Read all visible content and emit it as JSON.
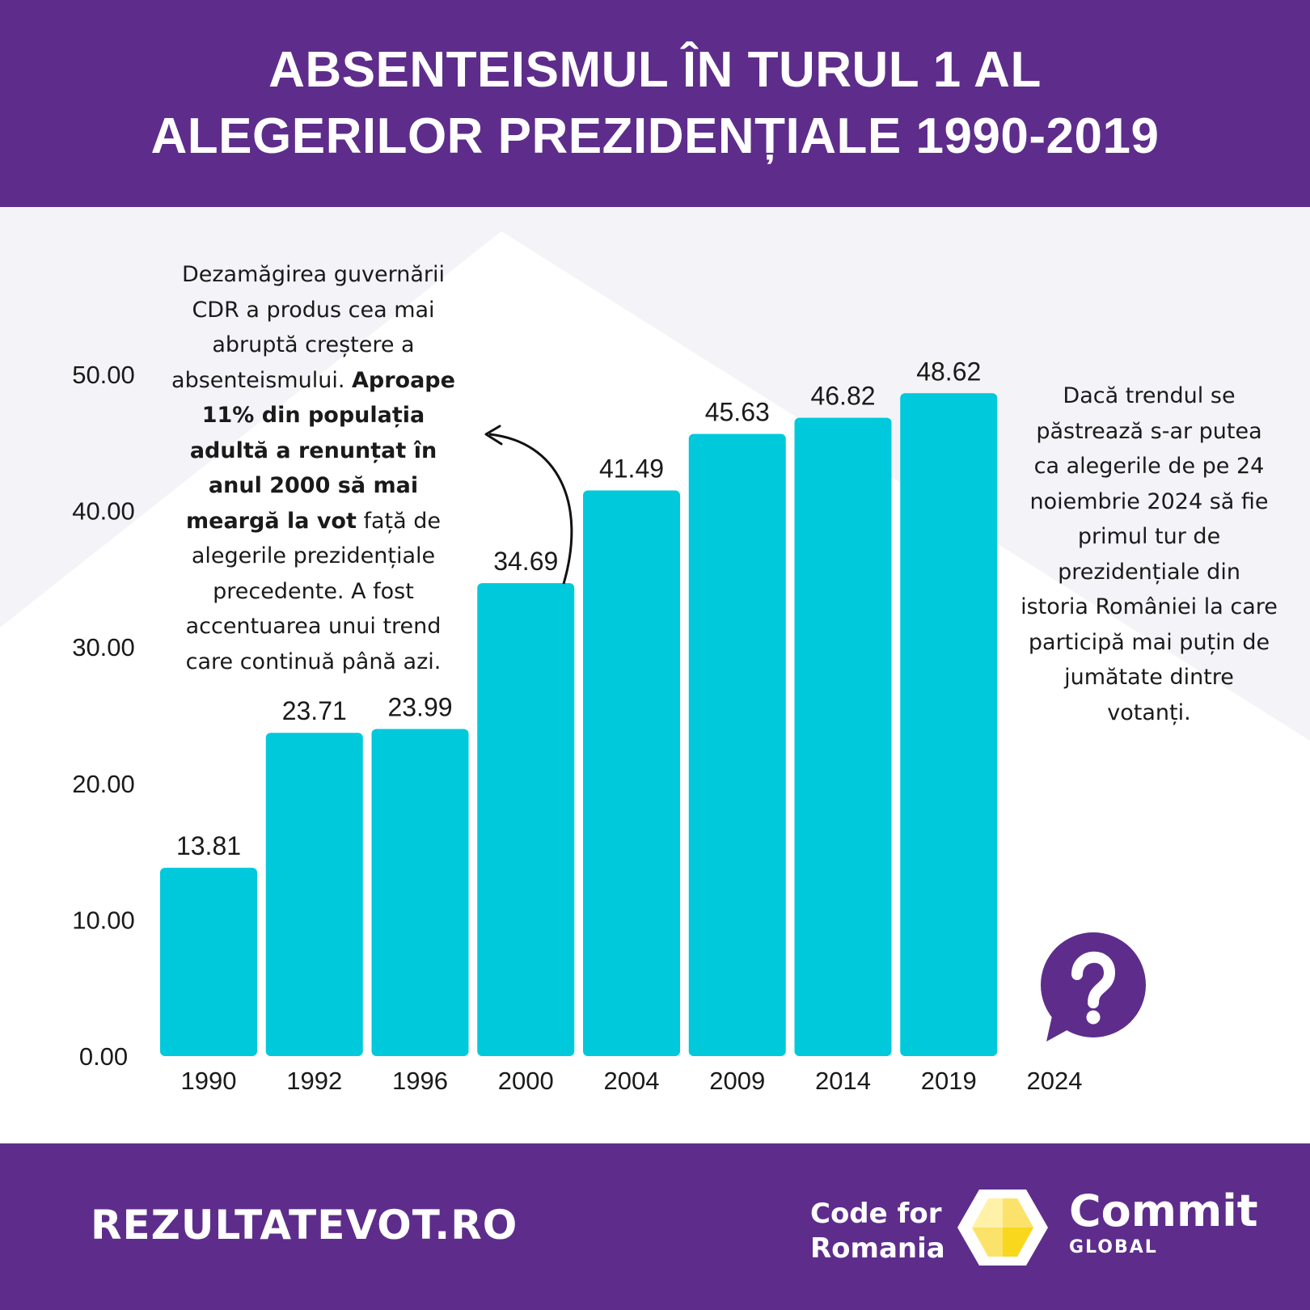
{
  "header": {
    "title_line1": "ABSENTEISMUL ÎN TURUL 1 AL",
    "title_line2": "ALEGERILOR PREZIDENȚIALE 1990-2019"
  },
  "annotations": {
    "left_part1": "Dezamăgirea guvernării CDR a produs cea mai abruptă creștere a absenteismului.",
    "left_bold": "Aproape 11% din populația adultă a renunțat în anul 2000 să mai meargă la vot",
    "left_part2": "față de alegerile prezidențiale precedente. A fost accentuarea unui trend care continuă până azi.",
    "right": "Dacă trendul se păstrează s-ar putea ca alegerile de pe 24 noiembrie 2024 să fie primul tur de prezidențiale din istoria României la care participă mai puțin de jumătate dintre votanți."
  },
  "footer": {
    "url": "REZULTATEVOT.RO",
    "cfr_line1": "Code for",
    "cfr_line2": "Romania",
    "commit_name": "Commit",
    "commit_sub": "GLOBAL"
  },
  "colors": {
    "brand_purple": "#5e2d8b",
    "bar": "#00c9db",
    "logo_yellow": "#f9d71c"
  },
  "icons": {
    "question": "question-bubble-icon",
    "arrow": "curved-arrow-icon",
    "logo": "code-for-romania-logo-icon"
  },
  "chart_data": {
    "type": "bar",
    "categories": [
      "1990",
      "1992",
      "1996",
      "2000",
      "2004",
      "2009",
      "2014",
      "2019",
      "2024"
    ],
    "values": [
      13.81,
      23.71,
      23.99,
      34.69,
      41.49,
      45.63,
      46.82,
      48.62,
      null
    ],
    "value_labels": [
      "13.81",
      "23.71",
      "23.99",
      "34.69",
      "41.49",
      "45.63",
      "46.82",
      "48.62",
      ""
    ],
    "yticks": [
      "0.00",
      "10.00",
      "20.00",
      "30.00",
      "40.00",
      "50.00"
    ],
    "ylim": [
      0,
      50
    ],
    "grid": false,
    "legend": "none",
    "title": "ABSENTEISMUL ÎN TURUL 1 AL ALEGERILOR PREZIDENȚIALE 1990-2019"
  }
}
